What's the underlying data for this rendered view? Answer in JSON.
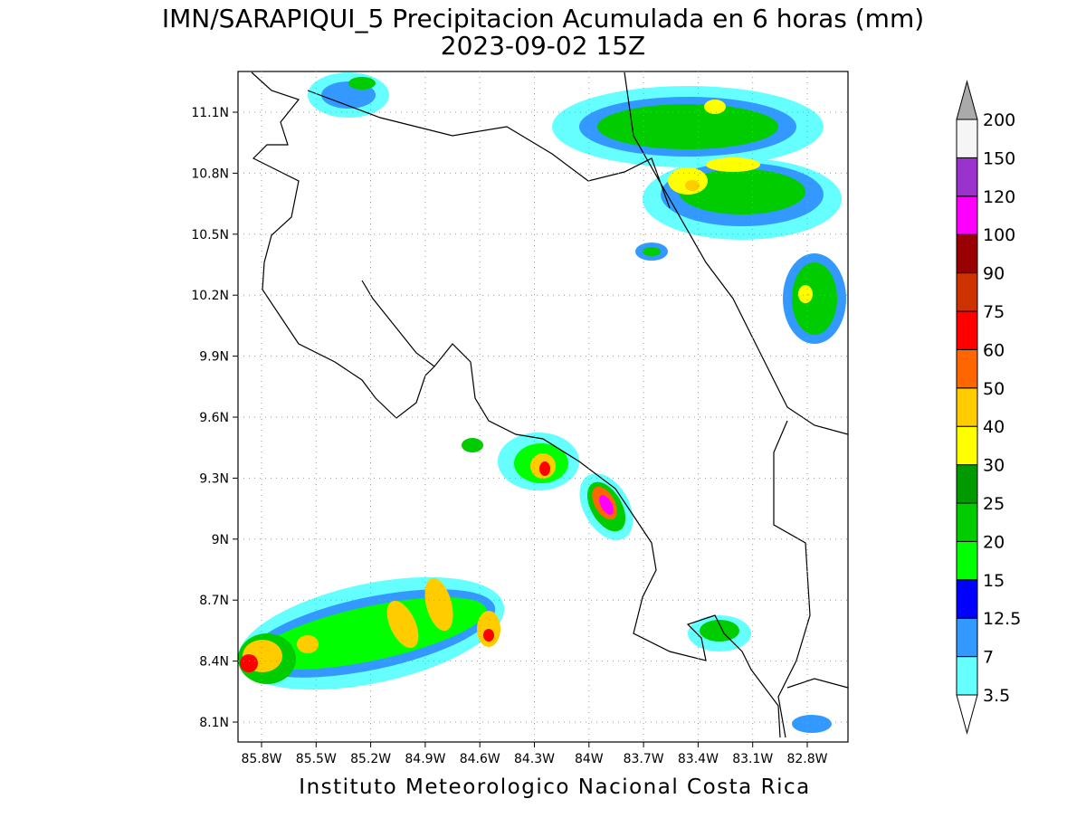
{
  "map": {
    "title": "IMN/SARAPIQUI_5 Precipitacion Acumulada en 6 horas (mm)",
    "subtitle": "2023-09-02 15Z",
    "footer": "Instituto Meteorologico Nacional Costa Rica",
    "lon_labels": [
      "85.8W",
      "85.5W",
      "85.2W",
      "84.9W",
      "84.6W",
      "84.3W",
      "84W",
      "83.7W",
      "83.4W",
      "83.1W",
      "82.8W"
    ],
    "lat_labels": [
      "11.1N",
      "10.8N",
      "10.5N",
      "10.2N",
      "9.9N",
      "9.6N",
      "9.3N",
      "9N",
      "8.7N",
      "8.4N",
      "8.1N"
    ],
    "colorbar": {
      "labels": [
        "3.5",
        "7",
        "12.5",
        "15",
        "20",
        "25",
        "30",
        "40",
        "50",
        "60",
        "75",
        "90",
        "100",
        "120",
        "150",
        "200"
      ],
      "colors": [
        "#66ffff",
        "#3399ff",
        "#0000ff",
        "#00ff00",
        "#00cc00",
        "#009900",
        "#ffff00",
        "#ffcc00",
        "#ff6600",
        "#ff0000",
        "#cc3300",
        "#990000",
        "#ff00ff",
        "#9933cc",
        "#f5f5f5"
      ],
      "under_color": "#ffffff",
      "over_color": "#aaaaaa"
    }
  }
}
